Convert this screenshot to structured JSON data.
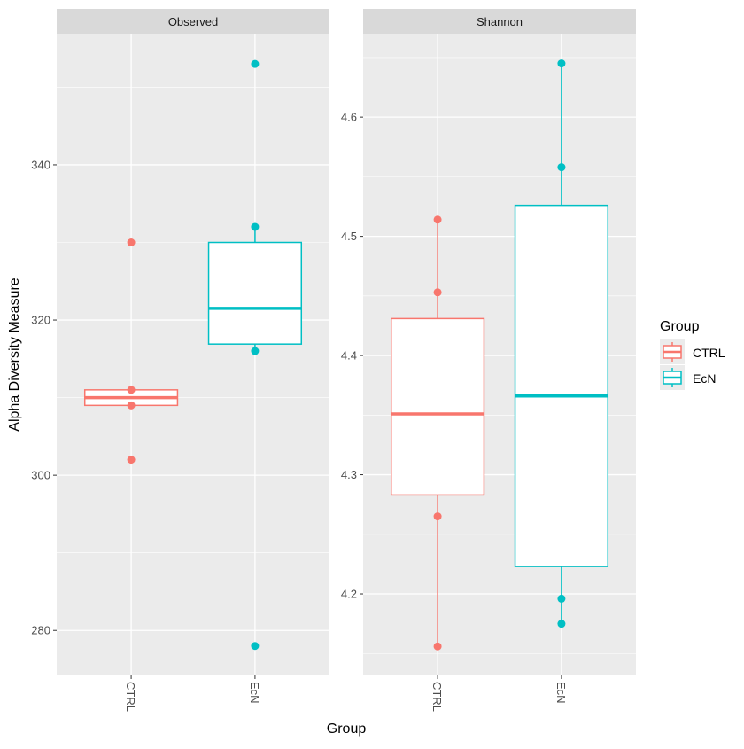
{
  "chart_data": {
    "type": "box",
    "xlabel": "Group",
    "ylabel": "Alpha Diversity Measure",
    "legend": {
      "title": "Group",
      "position": "right",
      "entries": [
        {
          "name": "CTRL",
          "color": "#F8766D"
        },
        {
          "name": "EcN",
          "color": "#00BFC4"
        }
      ]
    },
    "grid": true,
    "categories": [
      "CTRL",
      "EcN"
    ],
    "facets": [
      {
        "title": "Observed",
        "ylim": [
          274.2,
          356.9
        ],
        "yticks": [
          280,
          300,
          320,
          340
        ],
        "ytick_labels": [
          "280",
          "300",
          "320",
          "340"
        ],
        "boxes": [
          {
            "group": "CTRL",
            "lower_whisker": 309,
            "q1": 309,
            "median": 310,
            "q3": 311,
            "upper_whisker": 311,
            "points": [
              330,
              311,
              309,
              302
            ]
          },
          {
            "group": "EcN",
            "lower_whisker": 316,
            "q1": 316.9,
            "median": 321.5,
            "q3": 330,
            "upper_whisker": 332,
            "points": [
              353,
              332,
              316,
              278
            ]
          }
        ]
      },
      {
        "title": "Shannon",
        "ylim": [
          4.1316,
          4.67
        ],
        "yticks": [
          4.2,
          4.3,
          4.4,
          4.5,
          4.6
        ],
        "ytick_labels": [
          "4.2",
          "4.3",
          "4.4",
          "4.5",
          "4.6"
        ],
        "boxes": [
          {
            "group": "CTRL",
            "lower_whisker": 4.156,
            "q1": 4.283,
            "median": 4.351,
            "q3": 4.431,
            "upper_whisker": 4.514,
            "points": [
              4.514,
              4.453,
              4.265,
              4.156
            ]
          },
          {
            "group": "EcN",
            "lower_whisker": 4.175,
            "q1": 4.223,
            "median": 4.366,
            "q3": 4.526,
            "upper_whisker": 4.645,
            "points": [
              4.645,
              4.558,
              4.196,
              4.175
            ]
          }
        ]
      }
    ]
  }
}
